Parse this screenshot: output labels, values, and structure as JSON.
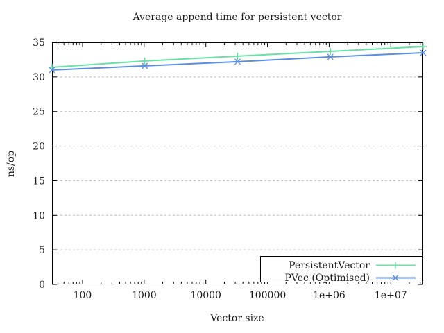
{
  "title": "Average append time for persistent vector",
  "axes": {
    "x": {
      "label": "Vector size",
      "scale": "log",
      "tick_values": [
        100,
        1000,
        10000,
        100000,
        1000000,
        10000000
      ],
      "tick_labels": [
        "100",
        "1000",
        "10000",
        "100000",
        "1e+06",
        "1e+07"
      ]
    },
    "y": {
      "label": "ns/op",
      "scale": "linear",
      "tick_values": [
        0,
        5,
        10,
        15,
        20,
        25,
        30,
        35
      ],
      "tick_labels": [
        "0",
        "5",
        "10",
        "15",
        "20",
        "25",
        "30",
        "35"
      ]
    }
  },
  "chart_data": {
    "type": "line",
    "title": "Average append time for persistent vector",
    "xlabel": "Vector size",
    "ylabel": "ns/op",
    "x_scale": "log",
    "xlim": [
      32,
      33554432
    ],
    "ylim": [
      0,
      35
    ],
    "grid": "horizontal-dashed-only",
    "legend_position": "bottom-right",
    "x": [
      32,
      1024,
      32768,
      1048576,
      33554432
    ],
    "series": [
      {
        "name": "PersistentVector",
        "marker": "plus",
        "color": "#69e0a5",
        "values": [
          31.4,
          32.3,
          33.0,
          33.7,
          34.4
        ]
      },
      {
        "name": "PVec (Optimised)",
        "marker": "cross",
        "color": "#5b8de0",
        "values": [
          31.0,
          31.6,
          32.2,
          32.9,
          33.5
        ]
      }
    ]
  },
  "colors": {
    "background": "#ffffff",
    "plot_border": "#000000",
    "grid": "#bbbbbb",
    "text": "#1a1a1a",
    "series_green": "#69e0a5",
    "series_blue": "#5b8de0"
  }
}
